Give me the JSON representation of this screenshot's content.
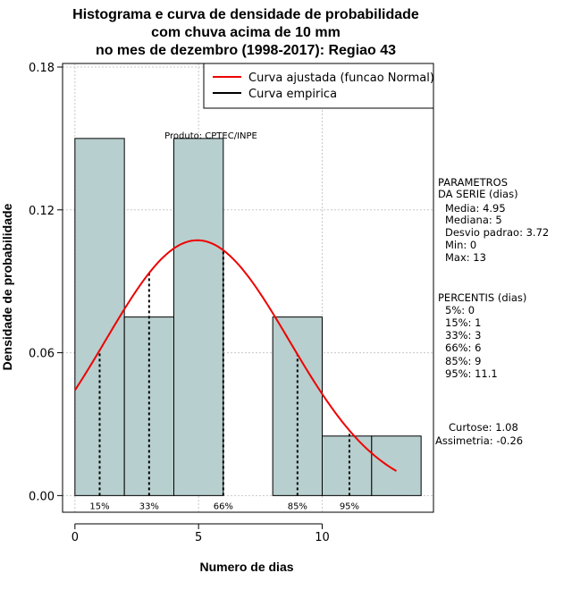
{
  "chart_data": {
    "type": "bar",
    "title_lines": [
      "Histograma e curva de densidade de probabilidade",
      "com chuva acima de 10 mm",
      "no mes de dezembro (1998-2017): Regiao 43"
    ],
    "xlabel": "Numero de dias",
    "ylabel": "Densidade de probabilidade",
    "xlim": [
      -0.5,
      14.5
    ],
    "ylim": [
      -0.007,
      0.1815
    ],
    "x_ticks": [
      0,
      5,
      10
    ],
    "y_ticks": [
      0.0,
      0.06,
      0.12,
      0.18
    ],
    "y_tick_labels": [
      "0.00",
      "0.06",
      "0.12",
      "0.18"
    ],
    "bins": [
      {
        "start": 0,
        "end": 2,
        "density": 0.15
      },
      {
        "start": 2,
        "end": 4,
        "density": 0.075
      },
      {
        "start": 4,
        "end": 6,
        "density": 0.15
      },
      {
        "start": 6,
        "end": 8,
        "density": 0.0
      },
      {
        "start": 8,
        "end": 10,
        "density": 0.075
      },
      {
        "start": 10,
        "end": 12,
        "density": 0.025
      },
      {
        "start": 12,
        "end": 14,
        "density": 0.025
      }
    ],
    "normal_fit": {
      "mean": 4.95,
      "sd": 3.72,
      "x_from": 0,
      "x_to": 13,
      "color": "#ee0000"
    },
    "percentile_markers": [
      {
        "label": "15%",
        "x": 1
      },
      {
        "label": "33%",
        "x": 3
      },
      {
        "label": "66%",
        "x": 6
      },
      {
        "label": "85%",
        "x": 9
      },
      {
        "label": "95%",
        "x": 11.1
      }
    ],
    "legend": [
      {
        "label": "Curva ajustada (funcao Normal)",
        "color": "#ee0000"
      },
      {
        "label": "Curva empirica",
        "color": "#000000"
      }
    ],
    "credit": "Produto: CPTEC/INPE",
    "bar_color": "#b7cfce",
    "grid": true
  },
  "stats": {
    "params_title": [
      "PARAMETROS",
      "DA SERIE (dias)"
    ],
    "params": [
      "Media: 4.95",
      "Mediana: 5",
      "Desvio padrao: 3.72",
      "Min: 0",
      "Max: 13"
    ],
    "percentis_title": "PERCENTIS (dias)",
    "percentis": [
      "5%: 0",
      "15%: 1",
      "33%: 3",
      "66%: 6",
      "85%: 9",
      "95%: 11.1"
    ],
    "curtose": "Curtose: 1.08",
    "assimetria": "Assimetria: -0.26"
  }
}
